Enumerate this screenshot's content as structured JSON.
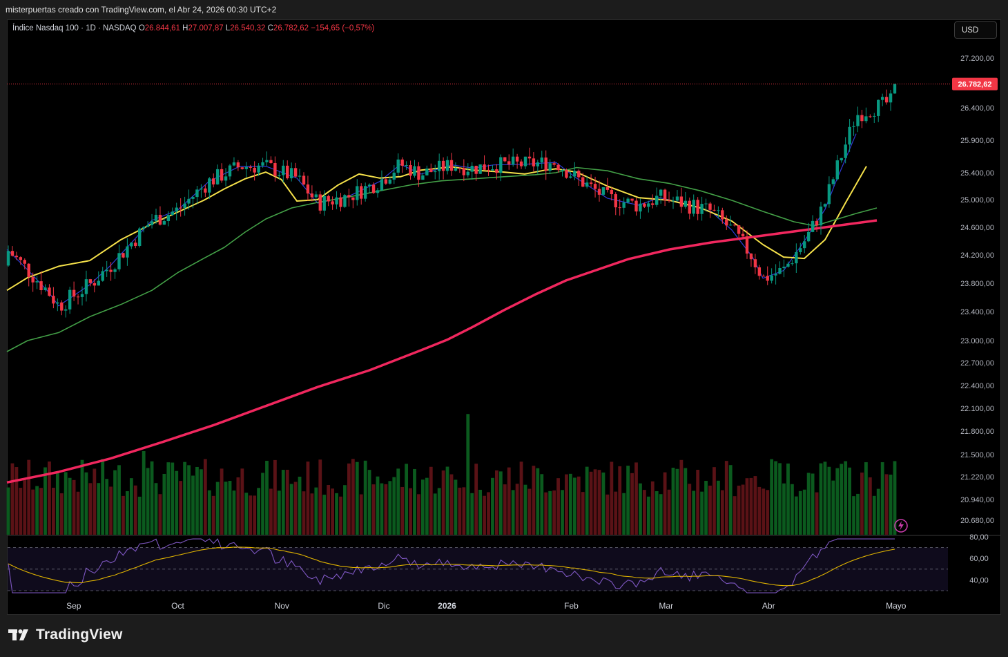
{
  "caption": "misterpuertas creado con TradingView.com, el Abr 24, 2026 00:30 UTC+2",
  "legend": {
    "symbol": "Índice Nasdaq 100 · 1D · NASDAQ",
    "o_label": "O",
    "o_value": "26.844,61",
    "h_label": "H",
    "h_value": "27.007,87",
    "l_label": "L",
    "l_value": "26.540,32",
    "c_label": "C",
    "c_value": "26.782,62",
    "change": "−154,65 (−0,57%)"
  },
  "currency_button": "USD",
  "brand": "TradingView",
  "colors": {
    "up": "#089981",
    "down": "#f23645",
    "vol_up": "#0b5a1e",
    "vol_down": "#5a1216",
    "sma20": "#2f3bd6",
    "sma50": "#f5e14a",
    "sma100": "#43a047",
    "sma200": "#f0275e",
    "rsi": "#7e57c2",
    "rsi_ma": "#e0b400"
  },
  "chart_data": {
    "type": "candlestick",
    "price_axis_ticks": [
      "27.200,00",
      "26.400,00",
      "25.900,00",
      "25.400,00",
      "25.000,00",
      "24.600,00",
      "24.200,00",
      "23.800,00",
      "23.400,00",
      "23.000,00",
      "22.700,00",
      "22.400,00",
      "22.100,00",
      "21.800,00",
      "21.500,00",
      "21.220,00",
      "20.940,00",
      "20.680,00"
    ],
    "last_price_label": "26.782,62",
    "rsi_axis_ticks": [
      "80,00",
      "60,00",
      "40,00"
    ],
    "time_labels": [
      "Sep",
      "Oct",
      "Nov",
      "Dic",
      "2026",
      "Feb",
      "Mar",
      "Abr",
      "Mayo"
    ],
    "time_positions": [
      0.129,
      0.33,
      0.531,
      0.728,
      0.85,
      1.09,
      1.273,
      1.471,
      1.717
    ],
    "overlay_series": [
      {
        "color": "blue",
        "points": [
          [
            0,
            24280
          ],
          [
            0.04,
            23990
          ],
          [
            0.08,
            23680
          ],
          [
            0.1,
            23480
          ],
          [
            0.16,
            23780
          ],
          [
            0.2,
            24050
          ],
          [
            0.28,
            24700
          ],
          [
            0.33,
            24850
          ],
          [
            0.39,
            25270
          ],
          [
            0.45,
            25500
          ],
          [
            0.5,
            25500
          ],
          [
            0.56,
            25320
          ],
          [
            0.6,
            24950
          ],
          [
            0.66,
            25050
          ],
          [
            0.72,
            25270
          ],
          [
            0.76,
            25530
          ],
          [
            0.8,
            25380
          ],
          [
            0.86,
            25520
          ],
          [
            0.9,
            25470
          ],
          [
            0.94,
            25520
          ],
          [
            1.0,
            25530
          ],
          [
            1.04,
            25550
          ],
          [
            1.06,
            25560
          ],
          [
            1.1,
            25320
          ],
          [
            1.16,
            25020
          ],
          [
            1.22,
            24920
          ],
          [
            1.26,
            25030
          ],
          [
            1.3,
            24960
          ],
          [
            1.36,
            24830
          ],
          [
            1.4,
            24560
          ],
          [
            1.44,
            24170
          ],
          [
            1.46,
            23870
          ],
          [
            1.5,
            23980
          ],
          [
            1.54,
            24400
          ],
          [
            1.58,
            24860
          ],
          [
            1.6,
            25250
          ],
          [
            1.64,
            26000
          ]
        ]
      },
      {
        "color": "yellow",
        "points": [
          [
            0,
            23700
          ],
          [
            0.04,
            23880
          ],
          [
            0.1,
            24040
          ],
          [
            0.16,
            24120
          ],
          [
            0.22,
            24420
          ],
          [
            0.28,
            24650
          ],
          [
            0.33,
            24820
          ],
          [
            0.38,
            24990
          ],
          [
            0.42,
            25160
          ],
          [
            0.46,
            25310
          ],
          [
            0.5,
            25410
          ],
          [
            0.53,
            25300
          ],
          [
            0.56,
            24980
          ],
          [
            0.6,
            25000
          ],
          [
            0.64,
            25220
          ],
          [
            0.68,
            25380
          ],
          [
            0.72,
            25320
          ],
          [
            0.76,
            25340
          ],
          [
            0.8,
            25440
          ],
          [
            0.86,
            25490
          ],
          [
            0.9,
            25440
          ],
          [
            0.96,
            25410
          ],
          [
            1.0,
            25380
          ],
          [
            1.04,
            25440
          ],
          [
            1.06,
            25460
          ],
          [
            1.1,
            25410
          ],
          [
            1.16,
            25200
          ],
          [
            1.22,
            25030
          ],
          [
            1.28,
            24990
          ],
          [
            1.34,
            24880
          ],
          [
            1.4,
            24690
          ],
          [
            1.46,
            24350
          ],
          [
            1.5,
            24170
          ],
          [
            1.54,
            24150
          ],
          [
            1.58,
            24420
          ],
          [
            1.62,
            24960
          ],
          [
            1.66,
            25500
          ]
        ]
      },
      {
        "color": "green",
        "points": [
          [
            0,
            22850
          ],
          [
            0.04,
            23000
          ],
          [
            0.1,
            23110
          ],
          [
            0.16,
            23330
          ],
          [
            0.22,
            23500
          ],
          [
            0.28,
            23700
          ],
          [
            0.33,
            23950
          ],
          [
            0.38,
            24150
          ],
          [
            0.42,
            24310
          ],
          [
            0.46,
            24530
          ],
          [
            0.5,
            24720
          ],
          [
            0.55,
            24880
          ],
          [
            0.6,
            24960
          ],
          [
            0.66,
            25040
          ],
          [
            0.72,
            25130
          ],
          [
            0.78,
            25220
          ],
          [
            0.84,
            25280
          ],
          [
            0.9,
            25310
          ],
          [
            0.96,
            25340
          ],
          [
            1.02,
            25370
          ],
          [
            1.06,
            25400
          ],
          [
            1.1,
            25480
          ],
          [
            1.16,
            25430
          ],
          [
            1.22,
            25310
          ],
          [
            1.28,
            25240
          ],
          [
            1.34,
            25130
          ],
          [
            1.4,
            24990
          ],
          [
            1.46,
            24830
          ],
          [
            1.52,
            24680
          ],
          [
            1.56,
            24620
          ],
          [
            1.6,
            24710
          ],
          [
            1.64,
            24800
          ],
          [
            1.68,
            24880
          ]
        ]
      },
      {
        "color": "pink",
        "points": [
          [
            0,
            21150
          ],
          [
            0.1,
            21280
          ],
          [
            0.2,
            21450
          ],
          [
            0.3,
            21660
          ],
          [
            0.4,
            21880
          ],
          [
            0.5,
            22130
          ],
          [
            0.6,
            22380
          ],
          [
            0.7,
            22600
          ],
          [
            0.8,
            22870
          ],
          [
            0.85,
            23010
          ],
          [
            0.9,
            23190
          ],
          [
            0.96,
            23420
          ],
          [
            1.02,
            23640
          ],
          [
            1.08,
            23840
          ],
          [
            1.14,
            23990
          ],
          [
            1.2,
            24140
          ],
          [
            1.28,
            24280
          ],
          [
            1.36,
            24380
          ],
          [
            1.44,
            24460
          ],
          [
            1.52,
            24540
          ],
          [
            1.6,
            24620
          ],
          [
            1.68,
            24700
          ]
        ]
      }
    ]
  }
}
